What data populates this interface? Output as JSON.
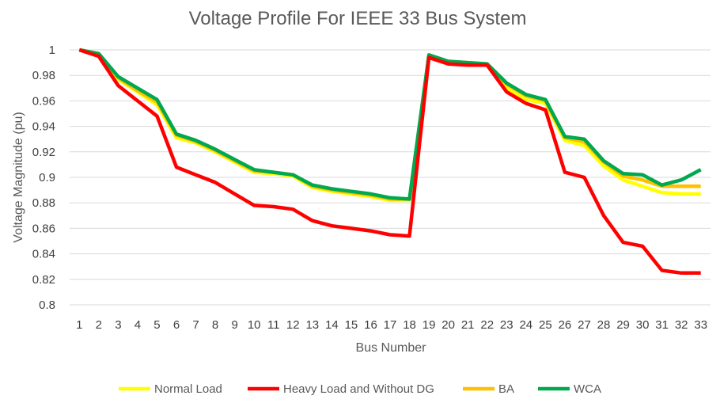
{
  "chart_data": {
    "type": "line",
    "title": "Voltage Profile For IEEE 33 Bus System",
    "xlabel": "Bus Number",
    "ylabel": "Voltage Magnitude (pu)",
    "ylim": [
      0.8,
      1.0
    ],
    "grid": true,
    "legend_position": "bottom",
    "categories": [
      "1",
      "2",
      "3",
      "4",
      "5",
      "6",
      "7",
      "8",
      "9",
      "10",
      "11",
      "12",
      "13",
      "14",
      "15",
      "16",
      "17",
      "18",
      "19",
      "20",
      "21",
      "22",
      "23",
      "24",
      "25",
      "26",
      "27",
      "28",
      "29",
      "30",
      "31",
      "32",
      "33"
    ],
    "y_ticks": [
      "0.8",
      "0.82",
      "0.84",
      "0.86",
      "0.88",
      "0.9",
      "0.92",
      "0.94",
      "0.96",
      "0.98",
      "1"
    ],
    "series": [
      {
        "name": "Normal Load",
        "color": "#FFFF00",
        "values": [
          1.0,
          0.997,
          0.977,
          0.967,
          0.957,
          0.931,
          0.927,
          0.92,
          0.912,
          0.904,
          0.903,
          0.901,
          0.892,
          0.889,
          0.887,
          0.885,
          0.882,
          0.882,
          0.995,
          0.99,
          0.989,
          0.988,
          0.97,
          0.961,
          0.958,
          0.929,
          0.925,
          0.909,
          0.898,
          0.893,
          0.888,
          0.887,
          0.887
        ]
      },
      {
        "name": "Heavy Load and Without DG",
        "color": "#FF0000",
        "values": [
          1.0,
          0.995,
          0.972,
          0.96,
          0.948,
          0.908,
          0.902,
          0.896,
          0.887,
          0.878,
          0.877,
          0.875,
          0.866,
          0.862,
          0.86,
          0.858,
          0.855,
          0.854,
          0.994,
          0.989,
          0.988,
          0.988,
          0.967,
          0.958,
          0.953,
          0.904,
          0.9,
          0.87,
          0.849,
          0.846,
          0.827,
          0.825,
          0.825
        ]
      },
      {
        "name": "BA",
        "color": "#FFC000",
        "values": [
          1.0,
          0.997,
          0.978,
          0.968,
          0.959,
          0.933,
          0.928,
          0.921,
          0.913,
          0.905,
          0.904,
          0.902,
          0.893,
          0.89,
          0.888,
          0.886,
          0.883,
          0.883,
          0.996,
          0.991,
          0.99,
          0.989,
          0.973,
          0.964,
          0.96,
          0.931,
          0.928,
          0.912,
          0.901,
          0.898,
          0.893,
          0.893,
          0.893
        ]
      },
      {
        "name": "WCA",
        "color": "#00A84F",
        "values": [
          1.0,
          0.997,
          0.979,
          0.97,
          0.961,
          0.934,
          0.929,
          0.922,
          0.914,
          0.906,
          0.904,
          0.902,
          0.894,
          0.891,
          0.889,
          0.887,
          0.884,
          0.883,
          0.996,
          0.991,
          0.99,
          0.989,
          0.974,
          0.965,
          0.961,
          0.932,
          0.93,
          0.913,
          0.903,
          0.902,
          0.894,
          0.898,
          0.906
        ]
      }
    ]
  }
}
